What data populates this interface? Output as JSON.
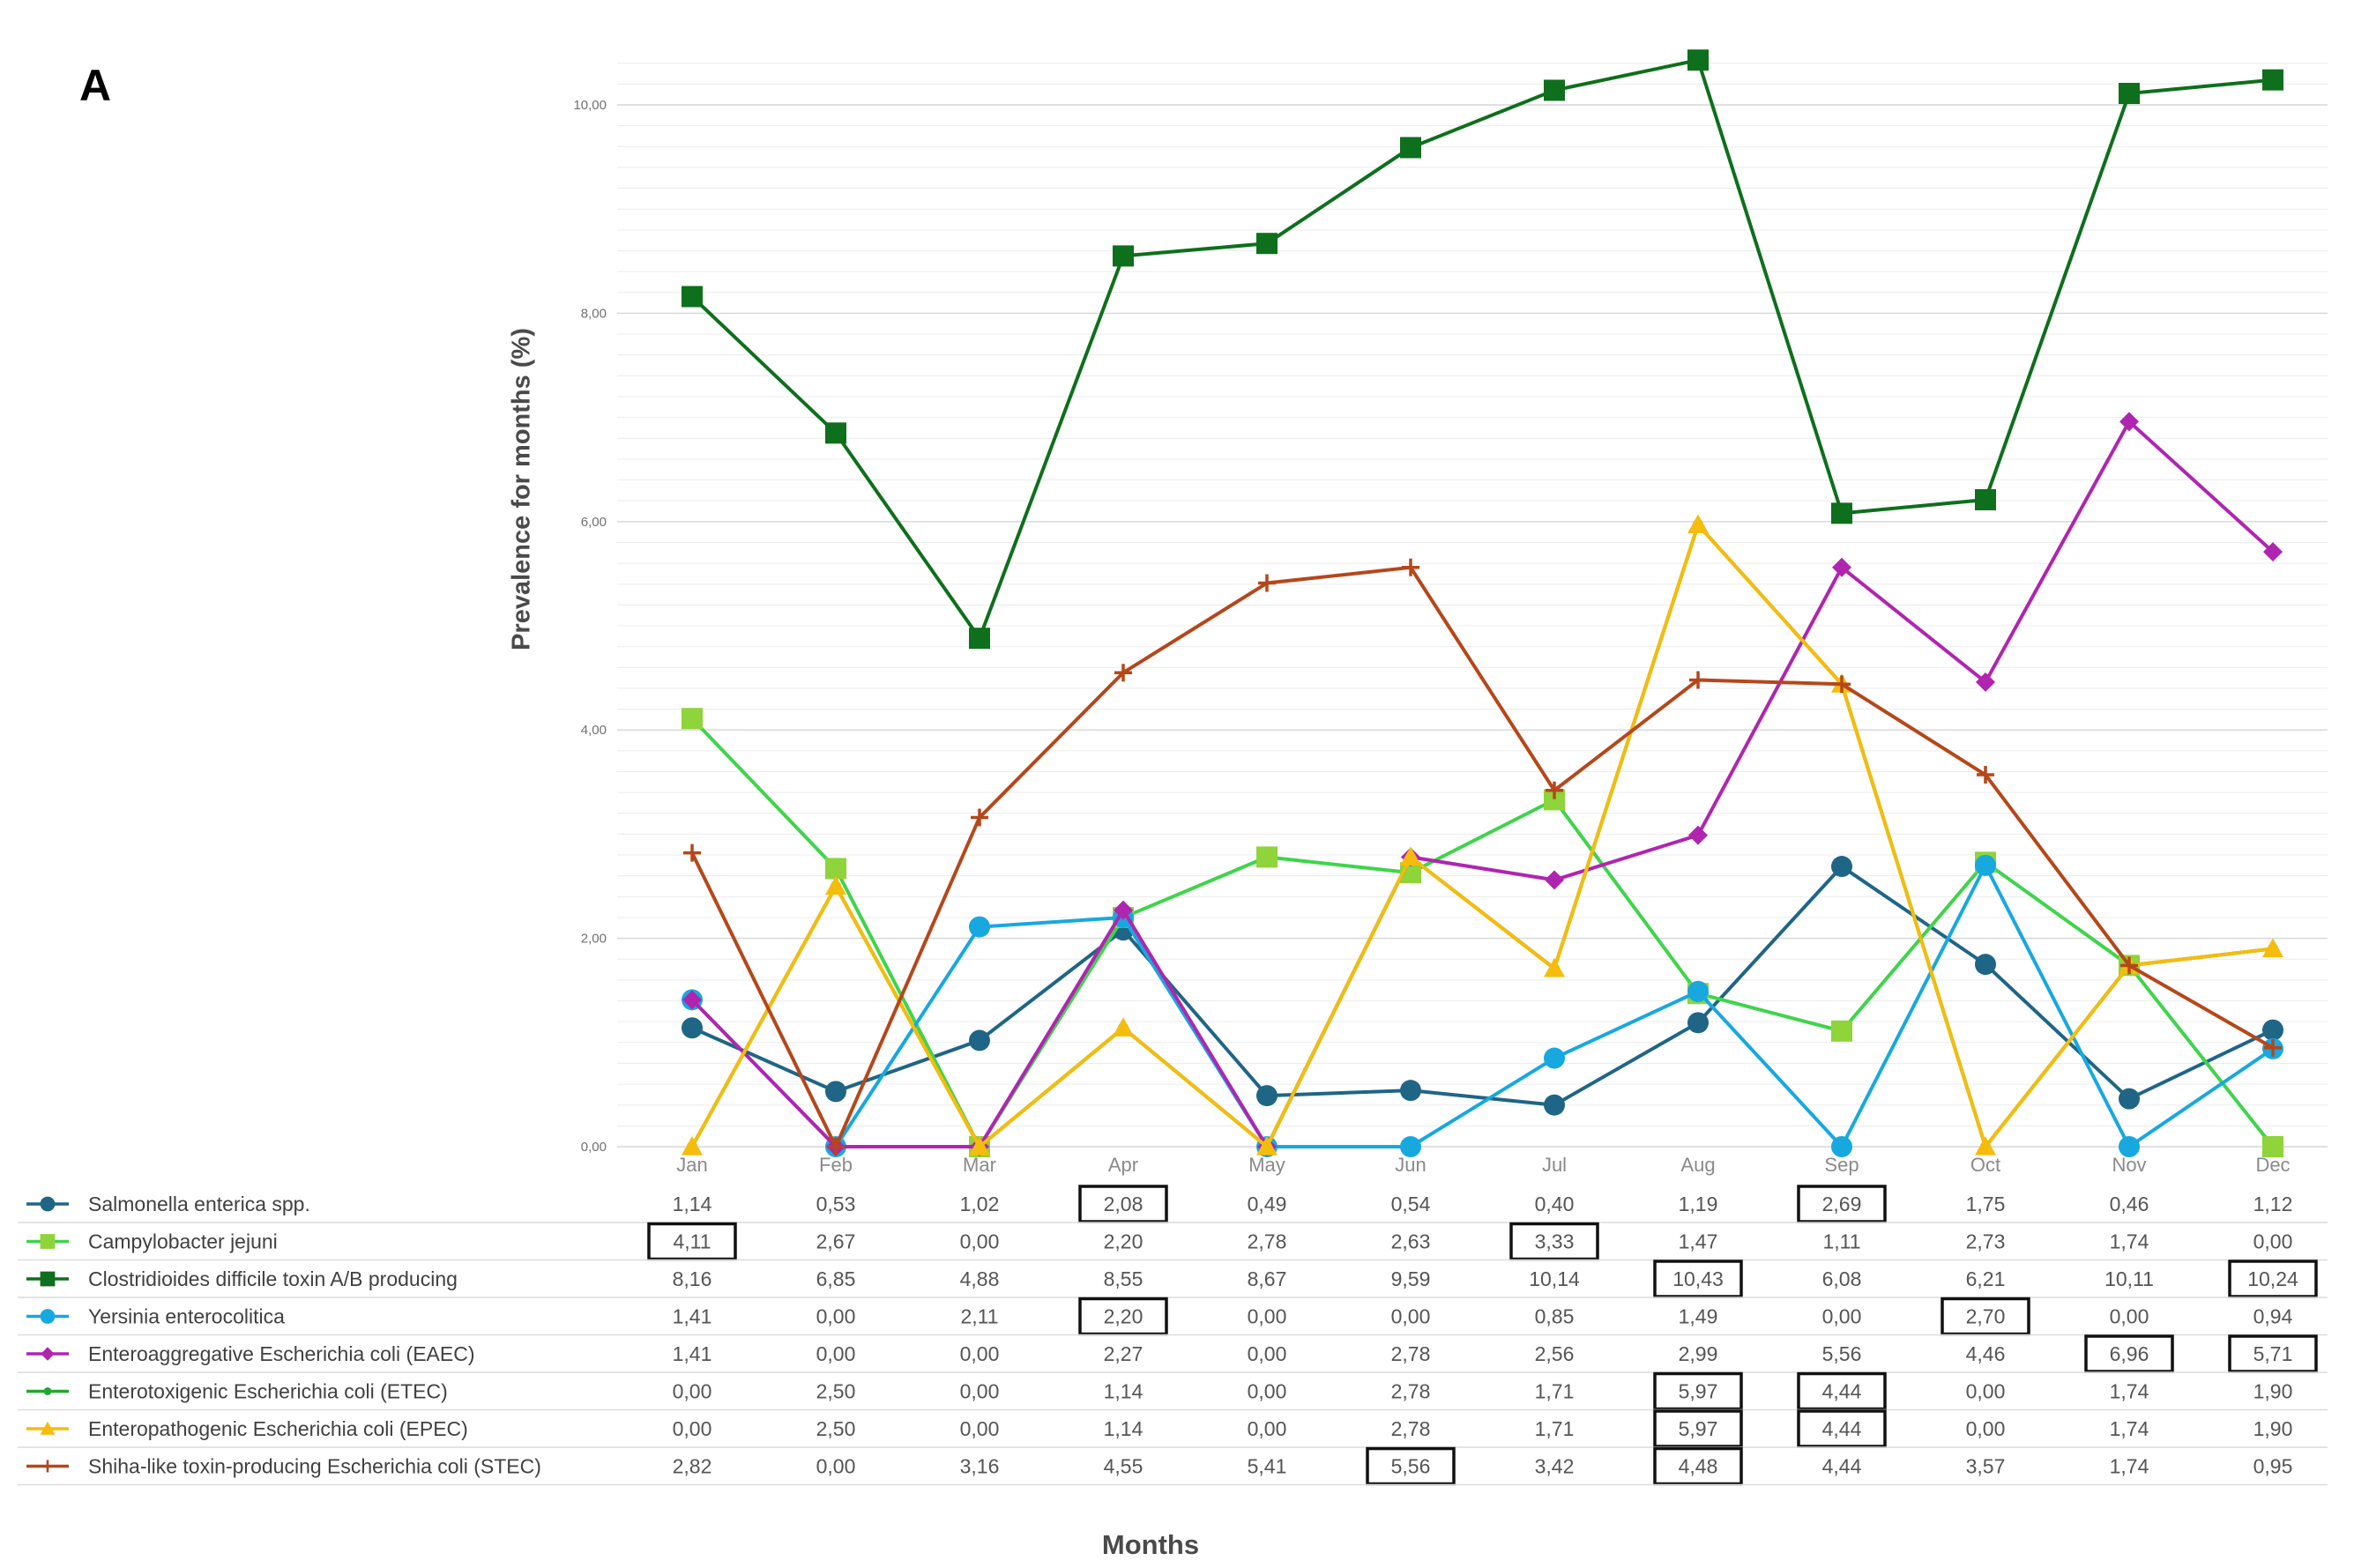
{
  "panel_label": "A",
  "chart_data": {
    "type": "line",
    "title": "",
    "xlabel": "Months",
    "ylabel": "Prevalence for months (%)",
    "ylim": [
      0,
      10.5
    ],
    "yticks": [
      "0,00",
      "2,00",
      "4,00",
      "6,00",
      "8,00",
      "10,00"
    ],
    "ytick_values": [
      0,
      2,
      4,
      6,
      8,
      10
    ],
    "grid": true,
    "legend": "data-table-below",
    "categories": [
      "Jan",
      "Feb",
      "Mar",
      "Apr",
      "May",
      "Jun",
      "Jul",
      "Aug",
      "Sep",
      "Oct",
      "Nov",
      "Dec"
    ],
    "series": [
      {
        "name": "Salmonella enterica spp.",
        "color": "#1f6585",
        "marker": "circle",
        "values": [
          1.14,
          0.53,
          1.02,
          2.08,
          0.49,
          0.54,
          0.4,
          1.19,
          2.69,
          1.75,
          0.46,
          1.12
        ],
        "labels": [
          "1,14",
          "0,53",
          "1,02",
          "2,08",
          "0,49",
          "0,54",
          "0,40",
          "1,19",
          "2,69",
          "1,75",
          "0,46",
          "1,12"
        ],
        "boxed": [
          3,
          8
        ]
      },
      {
        "name": "Campylobacter jejuni",
        "color": "#3fd44b",
        "marker_color": "#8ed43a",
        "marker": "square",
        "values": [
          4.11,
          2.67,
          0.0,
          2.2,
          2.78,
          2.63,
          3.33,
          1.47,
          1.11,
          2.73,
          1.74,
          0.0
        ],
        "labels": [
          "4,11",
          "2,67",
          "0,00",
          "2,20",
          "2,78",
          "2,63",
          "3,33",
          "1,47",
          "1,11",
          "2,73",
          "1,74",
          "0,00"
        ],
        "boxed": [
          0,
          6
        ]
      },
      {
        "name": "Clostridioides difficile toxin A/B producing",
        "color": "#0e6f1c",
        "marker": "square",
        "values": [
          8.16,
          6.85,
          4.88,
          8.55,
          8.67,
          9.59,
          10.14,
          10.43,
          6.08,
          6.21,
          10.11,
          10.24
        ],
        "labels": [
          "8,16",
          "6,85",
          "4,88",
          "8,55",
          "8,67",
          "9,59",
          "10,14",
          "10,43",
          "6,08",
          "6,21",
          "10,11",
          "10,24"
        ],
        "boxed": [
          7,
          11
        ]
      },
      {
        "name": "Yersinia enterocolitica",
        "color": "#17a8e0",
        "marker": "circle",
        "values": [
          1.41,
          0.0,
          2.11,
          2.2,
          0.0,
          0.0,
          0.85,
          1.49,
          0.0,
          2.7,
          0.0,
          0.94
        ],
        "labels": [
          "1,41",
          "0,00",
          "2,11",
          "2,20",
          "0,00",
          "0,00",
          "0,85",
          "1,49",
          "0,00",
          "2,70",
          "0,00",
          "0,94"
        ],
        "boxed": [
          3,
          9
        ]
      },
      {
        "name": "Enteroaggregative Escherichia coli (EAEC)",
        "color": "#b025b0",
        "marker": "diamond",
        "values": [
          1.41,
          0.0,
          0.0,
          2.27,
          0.0,
          2.78,
          2.56,
          2.99,
          5.56,
          4.46,
          6.96,
          5.71
        ],
        "labels": [
          "1,41",
          "0,00",
          "0,00",
          "2,27",
          "0,00",
          "2,78",
          "2,56",
          "2,99",
          "5,56",
          "4,46",
          "6,96",
          "5,71"
        ],
        "boxed": [
          10,
          11
        ]
      },
      {
        "name": "Enterotoxigenic Escherichia coli (ETEC)",
        "color": "#22a82f",
        "marker": "dot",
        "values": [
          0.0,
          2.5,
          0.0,
          1.14,
          0.0,
          2.78,
          1.71,
          5.97,
          4.44,
          0.0,
          1.74,
          1.9
        ],
        "labels": [
          "0,00",
          "2,50",
          "0,00",
          "1,14",
          "0,00",
          "2,78",
          "1,71",
          "5,97",
          "4,44",
          "0,00",
          "1,74",
          "1,90"
        ],
        "boxed": [
          7,
          8
        ]
      },
      {
        "name": "Enteropathogenic Escherichia coli (EPEC)",
        "color": "#f5bc0c",
        "marker": "triangle",
        "values": [
          0.0,
          2.5,
          0.0,
          1.14,
          0.0,
          2.78,
          1.71,
          5.97,
          4.44,
          0.0,
          1.74,
          1.9
        ],
        "labels": [
          "0,00",
          "2,50",
          "0,00",
          "1,14",
          "0,00",
          "2,78",
          "1,71",
          "5,97",
          "4,44",
          "0,00",
          "1,74",
          "1,90"
        ],
        "boxed": [
          7,
          8
        ]
      },
      {
        "name": "Shiha-like toxin-producing Escherichia coli (STEC)",
        "color": "#b5471a",
        "marker": "plus",
        "values": [
          2.82,
          0.0,
          3.16,
          4.55,
          5.41,
          5.56,
          3.42,
          4.48,
          4.44,
          3.57,
          1.74,
          0.95
        ],
        "labels": [
          "2,82",
          "0,00",
          "3,16",
          "4,55",
          "5,41",
          "5,56",
          "3,42",
          "4,48",
          "4,44",
          "3,57",
          "1,74",
          "0,95"
        ],
        "boxed": [
          5,
          7
        ]
      }
    ]
  }
}
